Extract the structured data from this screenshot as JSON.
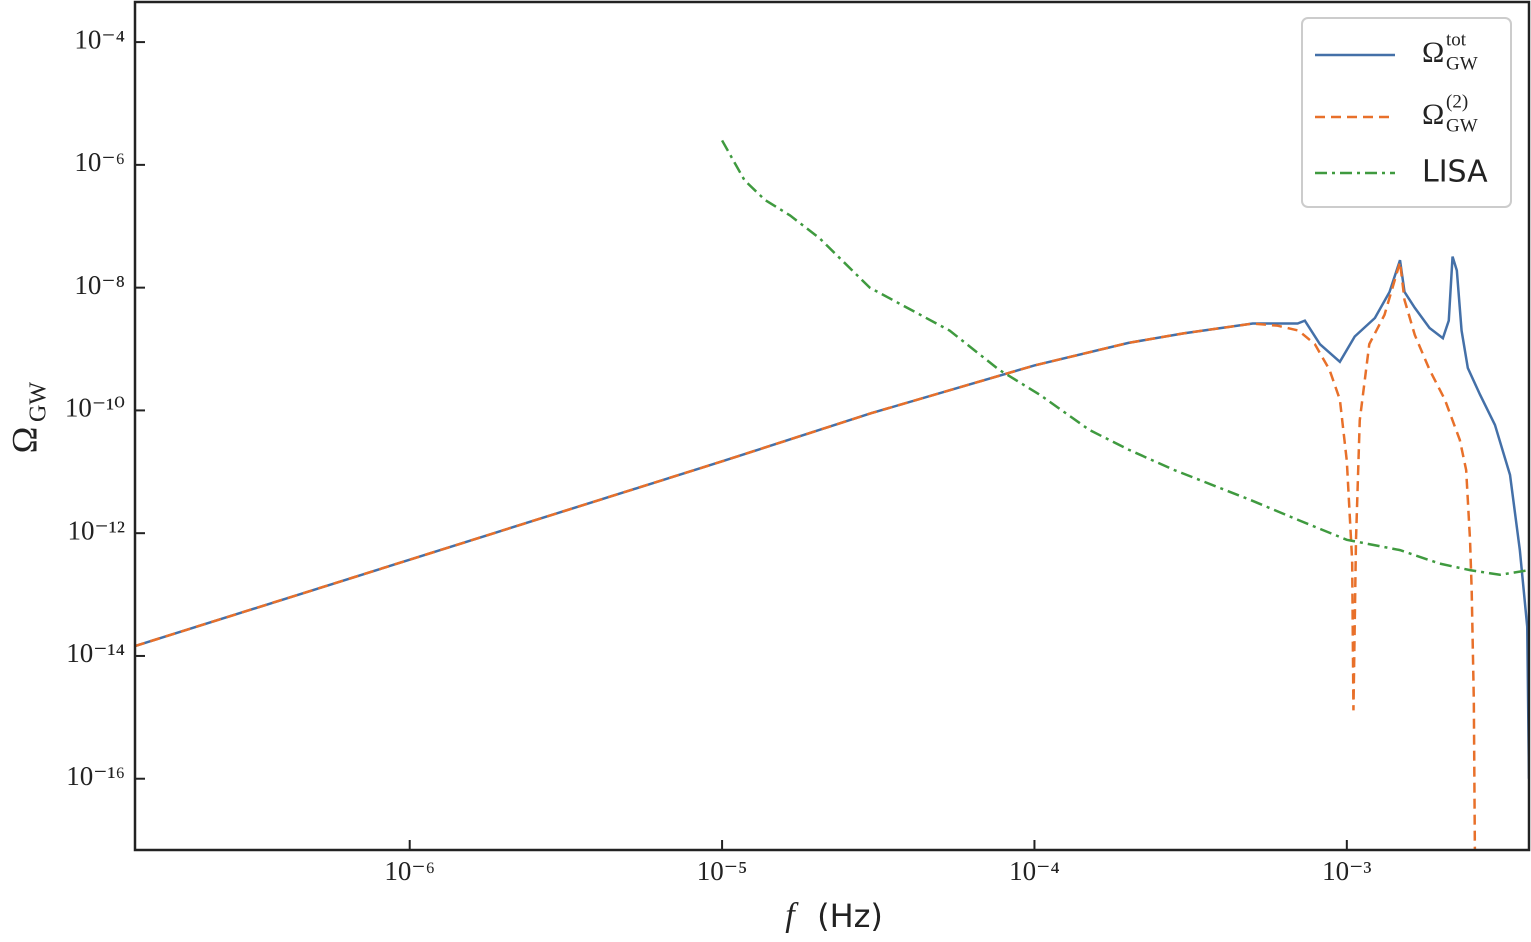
{
  "chart_data": {
    "type": "line",
    "xlabel": [
      "f",
      "(Hz)"
    ],
    "ylabel": [
      "Ω",
      "GW"
    ],
    "xscale": "log",
    "yscale": "log",
    "xlim": [
      1.32e-07,
      0.00383
    ],
    "ylim": [
      6.9e-18,
      0.00045
    ],
    "xticks": [
      {
        "value": 1e-06,
        "label": "10⁻⁶"
      },
      {
        "value": 1e-05,
        "label": "10⁻⁵"
      },
      {
        "value": 0.0001,
        "label": "10⁻⁴"
      },
      {
        "value": 0.001,
        "label": "10⁻³"
      }
    ],
    "yticks": [
      {
        "value": 1e-16,
        "label": "10⁻¹⁶"
      },
      {
        "value": 1e-14,
        "label": "10⁻¹⁴"
      },
      {
        "value": 1e-12,
        "label": "10⁻¹²"
      },
      {
        "value": 1e-10,
        "label": "10⁻¹⁰"
      },
      {
        "value": 1e-08,
        "label": "10⁻⁸"
      },
      {
        "value": 1e-06,
        "label": "10⁻⁶"
      },
      {
        "value": 0.0001,
        "label": "10⁻⁴"
      }
    ],
    "legend": "upper right",
    "series": [
      {
        "name": {
          "text": "Ω",
          "sup": "tot",
          "sub": "GW"
        },
        "color": "#4470a8",
        "dash": "solid",
        "x": [
          1.32e-07,
          1e-06,
          1e-05,
          3e-05,
          0.0001,
          0.0002,
          0.0003,
          0.0005,
          0.000696,
          0.000734,
          0.00082,
          0.00095,
          0.00106,
          0.00123,
          0.00137,
          0.00148,
          0.00153,
          0.00165,
          0.00184,
          0.00203,
          0.00212,
          0.00218,
          0.00225,
          0.00233,
          0.00244,
          0.00267,
          0.00298,
          0.00333,
          0.00358,
          0.00378,
          0.00383
        ],
        "values": [
          1.45e-14,
          3.7e-13,
          1.48e-11,
          9e-11,
          5.4e-10,
          1.26e-09,
          1.8e-09,
          2.6e-09,
          2.6e-09,
          2.9e-09,
          1.2e-09,
          6.2e-10,
          1.6e-09,
          3.2e-09,
          8.5e-09,
          2.8e-08,
          8.5e-09,
          4.7e-09,
          2.2e-09,
          1.5e-09,
          2.9e-09,
          3.2e-08,
          1.9e-08,
          2e-09,
          4.9e-10,
          1.8e-10,
          5.8e-11,
          8.9e-12,
          5.3e-13,
          3e-14,
          1e-16
        ]
      },
      {
        "name": {
          "text": "Ω",
          "sup": "(2)",
          "sub": "GW"
        },
        "color": "#e8702a",
        "dash": "dashed",
        "x": [
          1.32e-07,
          1e-06,
          1e-05,
          3e-05,
          0.0001,
          0.0002,
          0.0003,
          0.0005,
          0.0006,
          0.0007,
          0.00079,
          0.00088,
          0.00095,
          0.001,
          0.00104,
          0.00105,
          0.00107,
          0.0011,
          0.00118,
          0.00132,
          0.00148,
          0.00153,
          0.00165,
          0.00184,
          0.00206,
          0.0023,
          0.00241,
          0.00248,
          0.00251,
          0.00255,
          0.00257
        ],
        "values": [
          1.45e-14,
          3.7e-13,
          1.48e-11,
          9e-11,
          5.4e-10,
          1.26e-09,
          1.8e-09,
          2.6e-09,
          2.4e-09,
          2e-09,
          1.2e-09,
          4.6e-10,
          1.5e-10,
          1.5e-11,
          3.6e-13,
          1.3e-15,
          7.8e-13,
          6.9e-11,
          1.2e-09,
          3.6e-09,
          2.6e-08,
          6.3e-09,
          1.7e-09,
          4.6e-10,
          1.5e-10,
          3.3e-11,
          1.07e-11,
          7.7e-13,
          1.2e-13,
          1.9e-15,
          6.9e-18
        ]
      },
      {
        "name": "LISA",
        "color": "#3f9a3f",
        "dash": "dashdot",
        "x": [
          1e-05,
          1.18e-05,
          1.37e-05,
          1.65e-05,
          2.05e-05,
          2.97e-05,
          5.35e-05,
          7.7e-05,
          0.000104,
          0.00015,
          0.0002,
          0.00028,
          0.00049,
          0.000707,
          0.001,
          0.00148,
          0.00198,
          0.00248,
          0.00309,
          0.00383
        ],
        "values": [
          2.5e-06,
          5.6e-07,
          2.7e-07,
          1.5e-07,
          6.4e-08,
          1e-08,
          2e-09,
          4.6e-10,
          1.8e-10,
          4.8e-11,
          2.3e-11,
          1.07e-11,
          3.5e-12,
          1.6e-12,
          7.8e-13,
          5.3e-13,
          3.2e-13,
          2.5e-13,
          2.1e-13,
          2.5e-13
        ]
      }
    ]
  }
}
